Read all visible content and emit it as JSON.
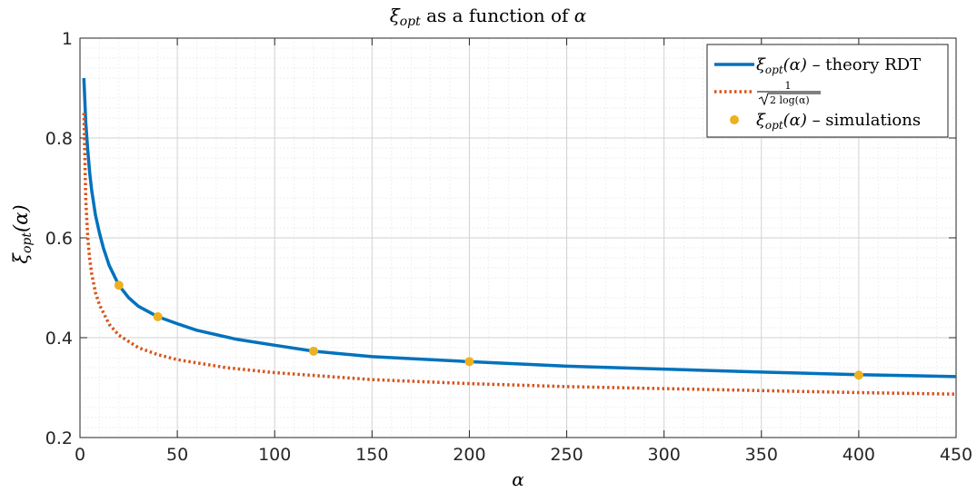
{
  "chart_data": {
    "type": "line",
    "title": {
      "sym": "ξ",
      "sub": "opt",
      "text": " as a function of ",
      "var": "α"
    },
    "xlabel": "α",
    "ylabel": {
      "sym": "ξ",
      "sub": "opt",
      "arg": "(α)"
    },
    "xlim": [
      0,
      450
    ],
    "ylim": [
      0.2,
      1
    ],
    "xticks": [
      0,
      50,
      100,
      150,
      200,
      250,
      300,
      350,
      400,
      450
    ],
    "yticks": [
      0.2,
      0.4,
      0.6,
      0.8,
      1
    ],
    "ytick_labels": [
      "0.2",
      "0.4",
      "0.6",
      "0.8",
      "1"
    ],
    "grid": true,
    "legend_position": "top-right",
    "series": [
      {
        "name": "ξopt(α) – theory RDT",
        "legend": {
          "sym": "ξ",
          "sub": "opt",
          "arg": "(α)",
          "text": " – theory RDT"
        },
        "style": "solid",
        "color": "#0072BD",
        "x": [
          2,
          3,
          4,
          5,
          6,
          8,
          10,
          12,
          15,
          20,
          25,
          30,
          40,
          50,
          60,
          80,
          100,
          120,
          150,
          200,
          250,
          300,
          350,
          400,
          450
        ],
        "y": [
          0.92,
          0.83,
          0.775,
          0.73,
          0.695,
          0.645,
          0.61,
          0.58,
          0.545,
          0.505,
          0.48,
          0.463,
          0.442,
          0.428,
          0.415,
          0.397,
          0.385,
          0.373,
          0.362,
          0.352,
          0.343,
          0.337,
          0.331,
          0.326,
          0.322
        ]
      },
      {
        "name": "1/√(2 log(α))",
        "legend": {
          "num": "1",
          "den": "2 log(α)"
        },
        "style": "dotted",
        "color": "#D95319",
        "x": [
          2,
          3,
          4,
          5,
          6,
          8,
          10,
          15,
          20,
          30,
          40,
          50,
          75,
          100,
          150,
          200,
          250,
          300,
          350,
          400,
          450
        ],
        "y": [
          0.85,
          0.675,
          0.6,
          0.557,
          0.528,
          0.49,
          0.466,
          0.427,
          0.405,
          0.38,
          0.366,
          0.356,
          0.34,
          0.33,
          0.316,
          0.308,
          0.302,
          0.298,
          0.294,
          0.29,
          0.287
        ]
      },
      {
        "name": "ξopt(α) – simulations",
        "legend": {
          "sym": "ξ",
          "sub": "opt",
          "arg": "(α)",
          "text": " – simulations"
        },
        "style": "markers",
        "color": "#EDB120",
        "x": [
          20,
          40,
          120,
          200,
          400
        ],
        "y": [
          0.505,
          0.442,
          0.373,
          0.352,
          0.325
        ]
      }
    ]
  }
}
